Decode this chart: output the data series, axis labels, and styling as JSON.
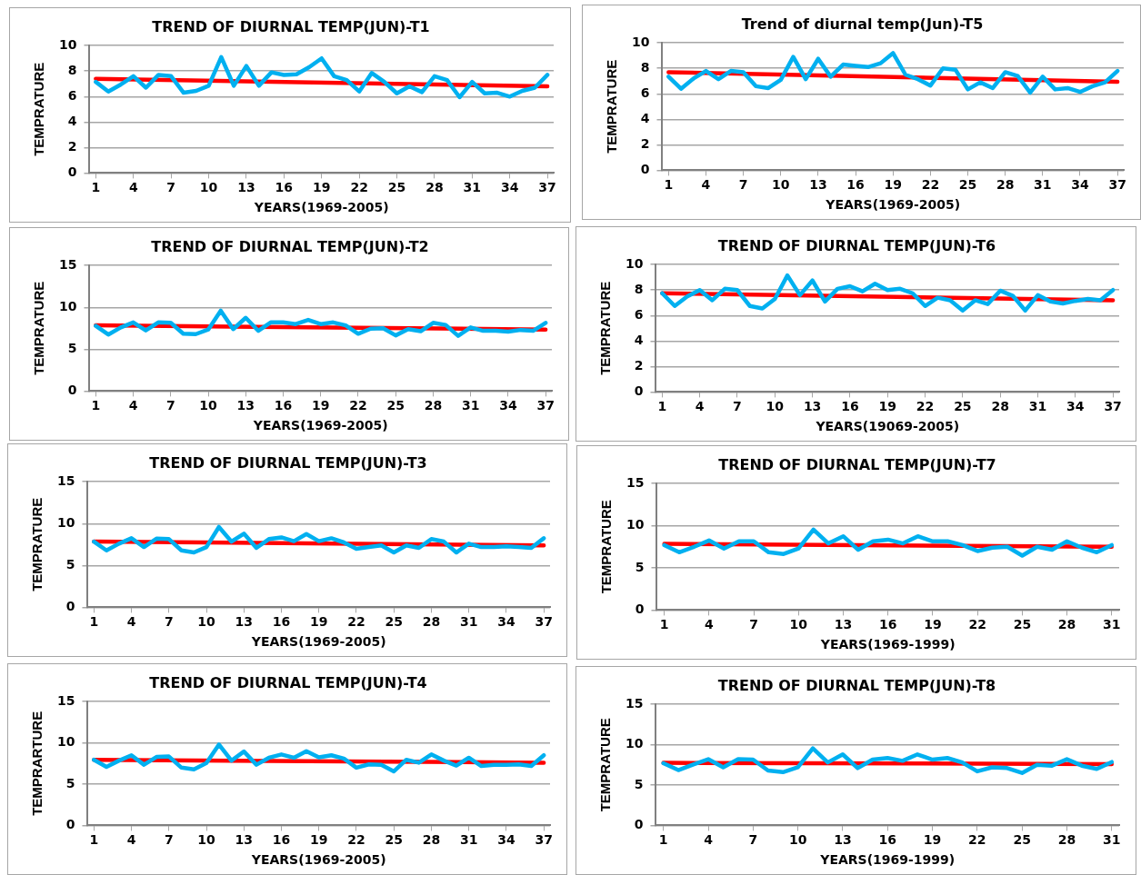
{
  "chart_data": [
    {
      "type": "line",
      "title": "TREND OF DIURNAL TEMP(JUN)-T1",
      "xlabel": "YEARS(1969-2005)",
      "ylabel": "TEMPRATURE",
      "x": [
        1,
        2,
        3,
        4,
        5,
        6,
        7,
        8,
        9,
        10,
        11,
        12,
        13,
        14,
        15,
        16,
        17,
        18,
        19,
        20,
        21,
        22,
        23,
        24,
        25,
        26,
        27,
        28,
        29,
        30,
        31,
        32,
        33,
        34,
        35,
        36,
        37
      ],
      "xlim": [
        0.5,
        37.5
      ],
      "xticks": [
        1,
        4,
        7,
        10,
        13,
        16,
        19,
        22,
        25,
        28,
        31,
        34,
        37
      ],
      "ylim": [
        0,
        10
      ],
      "yticks": [
        0,
        2,
        4,
        6,
        8,
        10
      ],
      "grid": "y",
      "marker": "none",
      "series": [
        {
          "color": "#00b0f0",
          "values": [
            7.15,
            6.4,
            6.95,
            7.6,
            6.7,
            7.7,
            7.6,
            6.3,
            6.45,
            6.85,
            9.1,
            6.85,
            8.4,
            6.85,
            7.9,
            7.7,
            7.75,
            8.3,
            9.0,
            7.6,
            7.3,
            6.4,
            7.85,
            7.15,
            6.25,
            6.8,
            6.35,
            7.6,
            7.3,
            5.95,
            7.15,
            6.25,
            6.3,
            6.0,
            6.45,
            6.7,
            7.7
          ]
        },
        {
          "type": "line",
          "color": "#ff0000",
          "x": [
            1,
            37
          ],
          "values": [
            7.4,
            6.8
          ]
        }
      ]
    },
    {
      "type": "line",
      "title": "Trend of diurnal temp(Jun)-T5",
      "xlabel": "YEARS(1969-2005)",
      "ylabel": "TEMPRATURE",
      "x": [
        1,
        2,
        3,
        4,
        5,
        6,
        7,
        8,
        9,
        10,
        11,
        12,
        13,
        14,
        15,
        16,
        17,
        18,
        19,
        20,
        21,
        22,
        23,
        24,
        25,
        26,
        27,
        28,
        29,
        30,
        31,
        32,
        33,
        34,
        35,
        36,
        37
      ],
      "xlim": [
        0.5,
        37.5
      ],
      "xticks": [
        1,
        4,
        7,
        10,
        13,
        16,
        19,
        22,
        25,
        28,
        31,
        34,
        37
      ],
      "ylim": [
        0,
        10
      ],
      "yticks": [
        0,
        2,
        4,
        6,
        8,
        10
      ],
      "grid": "y",
      "marker": "none",
      "series": [
        {
          "color": "#00b0f0",
          "values": [
            7.35,
            6.4,
            7.2,
            7.8,
            7.15,
            7.8,
            7.7,
            6.6,
            6.45,
            7.1,
            8.9,
            7.15,
            8.75,
            7.35,
            8.3,
            8.2,
            8.1,
            8.4,
            9.2,
            7.5,
            7.15,
            6.65,
            8.0,
            7.9,
            6.35,
            6.9,
            6.45,
            7.7,
            7.4,
            6.1,
            7.35,
            6.35,
            6.45,
            6.15,
            6.6,
            6.9,
            7.8
          ]
        },
        {
          "type": "line",
          "color": "#ff0000",
          "x": [
            1,
            37
          ],
          "values": [
            7.7,
            6.95
          ]
        }
      ]
    },
    {
      "type": "line",
      "title": "TREND OF DIURNAL TEMP(JUN)-T2",
      "xlabel": "YEARS(1969-2005)",
      "ylabel": "TEMPRATURE",
      "x": [
        1,
        2,
        3,
        4,
        5,
        6,
        7,
        8,
        9,
        10,
        11,
        12,
        13,
        14,
        15,
        16,
        17,
        18,
        19,
        20,
        21,
        22,
        23,
        24,
        25,
        26,
        27,
        28,
        29,
        30,
        31,
        32,
        33,
        34,
        35,
        36,
        37
      ],
      "xlim": [
        0.5,
        37.5
      ],
      "xticks": [
        1,
        4,
        7,
        10,
        13,
        16,
        19,
        22,
        25,
        28,
        31,
        34,
        37
      ],
      "ylim": [
        0,
        15
      ],
      "yticks": [
        0,
        5,
        10,
        15
      ],
      "grid": "y",
      "marker": "none",
      "series": [
        {
          "color": "#00b0f0",
          "values": [
            7.8,
            6.75,
            7.6,
            8.2,
            7.25,
            8.2,
            8.15,
            6.85,
            6.8,
            7.35,
            9.6,
            7.4,
            8.75,
            7.2,
            8.2,
            8.2,
            8.0,
            8.5,
            8.0,
            8.2,
            7.85,
            6.85,
            7.45,
            7.5,
            6.65,
            7.4,
            7.15,
            8.15,
            7.9,
            6.6,
            7.6,
            7.2,
            7.2,
            7.1,
            7.3,
            7.2,
            8.15
          ]
        },
        {
          "type": "line",
          "color": "#ff0000",
          "x": [
            1,
            37
          ],
          "values": [
            7.85,
            7.35
          ]
        }
      ]
    },
    {
      "type": "line",
      "title": "TREND OF DIURNAL TEMP(JUN)-T6",
      "xlabel": "YEARS(19069-2005)",
      "ylabel": "TEMPRATURE",
      "x": [
        1,
        2,
        3,
        4,
        5,
        6,
        7,
        8,
        9,
        10,
        11,
        12,
        13,
        14,
        15,
        16,
        17,
        18,
        19,
        20,
        21,
        22,
        23,
        24,
        25,
        26,
        27,
        28,
        29,
        30,
        31,
        32,
        33,
        34,
        35,
        36,
        37
      ],
      "xlim": [
        0.5,
        37.5
      ],
      "xticks": [
        1,
        4,
        7,
        10,
        13,
        16,
        19,
        22,
        25,
        28,
        31,
        34,
        37
      ],
      "ylim": [
        0,
        10
      ],
      "yticks": [
        0,
        2,
        4,
        6,
        8,
        10
      ],
      "grid": "y",
      "marker": "none",
      "series": [
        {
          "color": "#00b0f0",
          "values": [
            7.75,
            6.75,
            7.5,
            8.0,
            7.2,
            8.1,
            8.0,
            6.75,
            6.55,
            7.3,
            9.15,
            7.6,
            8.75,
            7.1,
            8.1,
            8.3,
            7.9,
            8.5,
            8.0,
            8.1,
            7.75,
            6.75,
            7.4,
            7.2,
            6.4,
            7.2,
            6.9,
            7.95,
            7.55,
            6.4,
            7.6,
            7.1,
            6.95,
            7.15,
            7.3,
            7.2,
            8.0
          ]
        },
        {
          "type": "line",
          "color": "#ff0000",
          "x": [
            1,
            37
          ],
          "values": [
            7.75,
            7.2
          ]
        }
      ]
    },
    {
      "type": "line",
      "title": "TREND OF DIURNAL TEMP(JUN)-T3",
      "xlabel": "YEARS(1969-2005)",
      "ylabel": "TEMPRATURE",
      "x": [
        1,
        2,
        3,
        4,
        5,
        6,
        7,
        8,
        9,
        10,
        11,
        12,
        13,
        14,
        15,
        16,
        17,
        18,
        19,
        20,
        21,
        22,
        23,
        24,
        25,
        26,
        27,
        28,
        29,
        30,
        31,
        32,
        33,
        34,
        35,
        36,
        37
      ],
      "xlim": [
        0.5,
        37.5
      ],
      "xticks": [
        1,
        4,
        7,
        10,
        13,
        16,
        19,
        22,
        25,
        28,
        31,
        34,
        37
      ],
      "ylim": [
        0,
        15
      ],
      "yticks": [
        0,
        5,
        10,
        15
      ],
      "grid": "y",
      "marker": "none",
      "series": [
        {
          "color": "#00b0f0",
          "values": [
            7.85,
            6.8,
            7.6,
            8.25,
            7.2,
            8.2,
            8.15,
            6.8,
            6.55,
            7.2,
            9.6,
            7.85,
            8.8,
            7.1,
            8.15,
            8.35,
            7.9,
            8.75,
            7.9,
            8.25,
            7.75,
            7.0,
            7.2,
            7.4,
            6.55,
            7.4,
            7.1,
            8.15,
            7.85,
            6.55,
            7.6,
            7.2,
            7.2,
            7.3,
            7.2,
            7.1,
            8.25
          ]
        },
        {
          "type": "line",
          "color": "#ff0000",
          "x": [
            1,
            37
          ],
          "values": [
            7.85,
            7.4
          ]
        }
      ]
    },
    {
      "type": "line",
      "title": "TREND OF DIURNAL TEMP(JUN)-T7",
      "xlabel": "YEARS(1969-1999)",
      "ylabel": "TEMPRATURE",
      "x": [
        1,
        2,
        3,
        4,
        5,
        6,
        7,
        8,
        9,
        10,
        11,
        12,
        13,
        14,
        15,
        16,
        17,
        18,
        19,
        20,
        21,
        22,
        23,
        24,
        25,
        26,
        27,
        28,
        29,
        30,
        31
      ],
      "xlim": [
        0.5,
        31.5
      ],
      "xticks": [
        1,
        4,
        7,
        10,
        13,
        16,
        19,
        22,
        25,
        28,
        31
      ],
      "ylim": [
        0,
        15
      ],
      "yticks": [
        0,
        5,
        10,
        15
      ],
      "grid": "y",
      "marker": "none",
      "series": [
        {
          "color": "#00b0f0",
          "values": [
            7.7,
            6.85,
            7.5,
            8.25,
            7.3,
            8.15,
            8.15,
            6.85,
            6.65,
            7.3,
            9.55,
            7.9,
            8.75,
            7.15,
            8.15,
            8.35,
            7.9,
            8.75,
            8.15,
            8.15,
            7.7,
            7.0,
            7.4,
            7.5,
            6.45,
            7.5,
            7.15,
            8.15,
            7.4,
            6.85,
            7.7
          ]
        },
        {
          "type": "line",
          "color": "#ff0000",
          "x": [
            1,
            31
          ],
          "values": [
            7.85,
            7.5
          ]
        }
      ]
    },
    {
      "type": "line",
      "title": "TREND OF DIURNAL TEMP(JUN)-T4",
      "xlabel": "YEARS(1969-2005)",
      "ylabel": "TEMPRARTURE",
      "x": [
        1,
        2,
        3,
        4,
        5,
        6,
        7,
        8,
        9,
        10,
        11,
        12,
        13,
        14,
        15,
        16,
        17,
        18,
        19,
        20,
        21,
        22,
        23,
        24,
        25,
        26,
        27,
        28,
        29,
        30,
        31,
        32,
        33,
        34,
        35,
        36,
        37
      ],
      "xlim": [
        0.5,
        37.5
      ],
      "xticks": [
        1,
        4,
        7,
        10,
        13,
        16,
        19,
        22,
        25,
        28,
        31,
        34,
        37
      ],
      "ylim": [
        0,
        15
      ],
      "yticks": [
        0,
        5,
        10,
        15
      ],
      "grid": "y",
      "marker": "none",
      "series": [
        {
          "color": "#00b0f0",
          "values": [
            7.95,
            7.1,
            7.85,
            8.5,
            7.35,
            8.3,
            8.35,
            7.0,
            6.8,
            7.55,
            9.8,
            7.85,
            8.95,
            7.35,
            8.2,
            8.6,
            8.2,
            9.0,
            8.25,
            8.5,
            8.1,
            7.0,
            7.4,
            7.35,
            6.55,
            7.95,
            7.6,
            8.6,
            7.85,
            7.25,
            8.2,
            7.2,
            7.35,
            7.35,
            7.4,
            7.2,
            8.5
          ]
        },
        {
          "type": "line",
          "color": "#ff0000",
          "x": [
            1,
            37
          ],
          "values": [
            7.95,
            7.6
          ]
        }
      ]
    },
    {
      "type": "line",
      "title": "TREND OF DIURNAL TEMP(JUN)-T8",
      "xlabel": "YEARS(1969-1999)",
      "ylabel": "TEMPRATURE",
      "x": [
        1,
        2,
        3,
        4,
        5,
        6,
        7,
        8,
        9,
        10,
        11,
        12,
        13,
        14,
        15,
        16,
        17,
        18,
        19,
        20,
        21,
        22,
        23,
        24,
        25,
        26,
        27,
        28,
        29,
        30,
        31
      ],
      "xlim": [
        0.5,
        31.5
      ],
      "xticks": [
        1,
        4,
        7,
        10,
        13,
        16,
        19,
        22,
        25,
        28,
        31
      ],
      "ylim": [
        0,
        15
      ],
      "yticks": [
        0,
        5,
        10,
        15
      ],
      "grid": "y",
      "marker": "none",
      "series": [
        {
          "color": "#00b0f0",
          "values": [
            7.7,
            6.85,
            7.55,
            8.2,
            7.2,
            8.2,
            8.15,
            6.8,
            6.6,
            7.2,
            9.55,
            7.8,
            8.8,
            7.1,
            8.15,
            8.35,
            8.0,
            8.8,
            8.15,
            8.35,
            7.8,
            6.7,
            7.2,
            7.1,
            6.5,
            7.5,
            7.4,
            8.2,
            7.4,
            7.0,
            7.85
          ]
        },
        {
          "type": "line",
          "color": "#ff0000",
          "x": [
            1,
            31
          ],
          "values": [
            7.75,
            7.6
          ]
        }
      ]
    }
  ]
}
